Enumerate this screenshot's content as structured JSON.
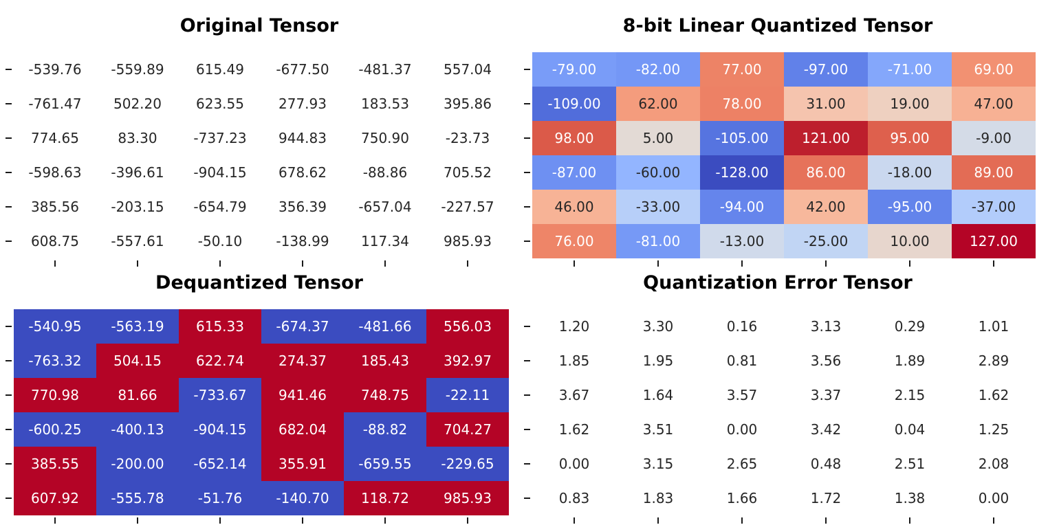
{
  "figure": {
    "background": "#ffffff"
  },
  "styles": {
    "text_dark": "#262626",
    "text_light": "#ffffff",
    "tick_color": "#1a1a1a",
    "title_color": "#000000",
    "coolwarm": [
      "#3b4cc0",
      "#445acc",
      "#4d68d7",
      "#5775e1",
      "#6282ea",
      "#6c8ef1",
      "#779af7",
      "#82a5fb",
      "#8db0fe",
      "#98b9ff",
      "#a3c2ff",
      "#aec9fd",
      "#b8d0f9",
      "#c2d5f4",
      "#ccd9ee",
      "#d5dbe6",
      "#dddddd",
      "#e5d8d1",
      "#ecd3c5",
      "#f1ccb9",
      "#f5c4ad",
      "#f7bba0",
      "#f7b194",
      "#f7a687",
      "#f49a7b",
      "#f18d6f",
      "#ec7f63",
      "#e57058",
      "#de604d",
      "#d55042",
      "#cb3e38",
      "#c0282f",
      "#b40426"
    ]
  },
  "chart_data": [
    {
      "type": "heatmap",
      "title": "Original Tensor",
      "cmap": "none",
      "text_rule": "all_dark",
      "value_format": "%.2f",
      "rows": 6,
      "cols": 6,
      "values": [
        [
          -539.76,
          -559.89,
          615.49,
          -677.5,
          -481.37,
          557.04
        ],
        [
          -761.47,
          502.2,
          623.55,
          277.93,
          183.53,
          395.86
        ],
        [
          774.65,
          83.3,
          -737.23,
          944.83,
          750.9,
          -23.73
        ],
        [
          -598.63,
          -396.61,
          -904.15,
          678.62,
          -88.86,
          705.52
        ],
        [
          385.56,
          -203.15,
          -654.79,
          356.39,
          -657.04,
          -227.57
        ],
        [
          608.75,
          -557.61,
          -50.1,
          -138.99,
          117.34,
          985.93
        ]
      ]
    },
    {
      "type": "heatmap",
      "title": "8-bit Linear Quantized Tensor",
      "cmap": "coolwarm",
      "vmin": -128,
      "vmax": 127,
      "text_rule": "white_if_abs_gt_64",
      "value_format": "%.2f",
      "rows": 6,
      "cols": 6,
      "values": [
        [
          -79,
          -82,
          77,
          -97,
          -71,
          69
        ],
        [
          -109,
          62,
          78,
          31,
          19,
          47
        ],
        [
          98,
          5,
          -105,
          121,
          95,
          -9
        ],
        [
          -87,
          -60,
          -128,
          86,
          -18,
          89
        ],
        [
          46,
          -33,
          -94,
          42,
          -95,
          -37
        ],
        [
          76,
          -81,
          -13,
          -25,
          10,
          127
        ]
      ]
    },
    {
      "type": "heatmap",
      "title": "Dequantized Tensor",
      "cmap": "coolwarm_sign",
      "text_rule": "all_white",
      "value_format": "%.2f",
      "rows": 6,
      "cols": 6,
      "values": [
        [
          -540.95,
          -563.19,
          615.33,
          -674.37,
          -481.66,
          556.03
        ],
        [
          -763.32,
          504.15,
          622.74,
          274.37,
          185.43,
          392.97
        ],
        [
          770.98,
          81.66,
          -733.67,
          941.46,
          748.75,
          -22.11
        ],
        [
          -600.25,
          -400.13,
          -904.15,
          682.04,
          -88.82,
          704.27
        ],
        [
          385.55,
          -200.0,
          -652.14,
          355.91,
          -659.55,
          -229.65
        ],
        [
          607.92,
          -555.78,
          -51.76,
          -140.7,
          118.72,
          985.93
        ]
      ]
    },
    {
      "type": "heatmap",
      "title": "Quantization Error Tensor",
      "cmap": "none",
      "text_rule": "all_dark",
      "value_format": "%.2f",
      "rows": 6,
      "cols": 6,
      "values": [
        [
          1.2,
          3.3,
          0.16,
          3.13,
          0.29,
          1.01
        ],
        [
          1.85,
          1.95,
          0.81,
          3.56,
          1.89,
          2.89
        ],
        [
          3.67,
          1.64,
          3.57,
          3.37,
          2.15,
          1.62
        ],
        [
          1.62,
          3.51,
          0.0,
          3.42,
          0.04,
          1.25
        ],
        [
          0.0,
          3.15,
          2.65,
          0.48,
          2.51,
          2.08
        ],
        [
          0.83,
          1.83,
          1.66,
          1.72,
          1.38,
          0.0
        ]
      ]
    }
  ]
}
